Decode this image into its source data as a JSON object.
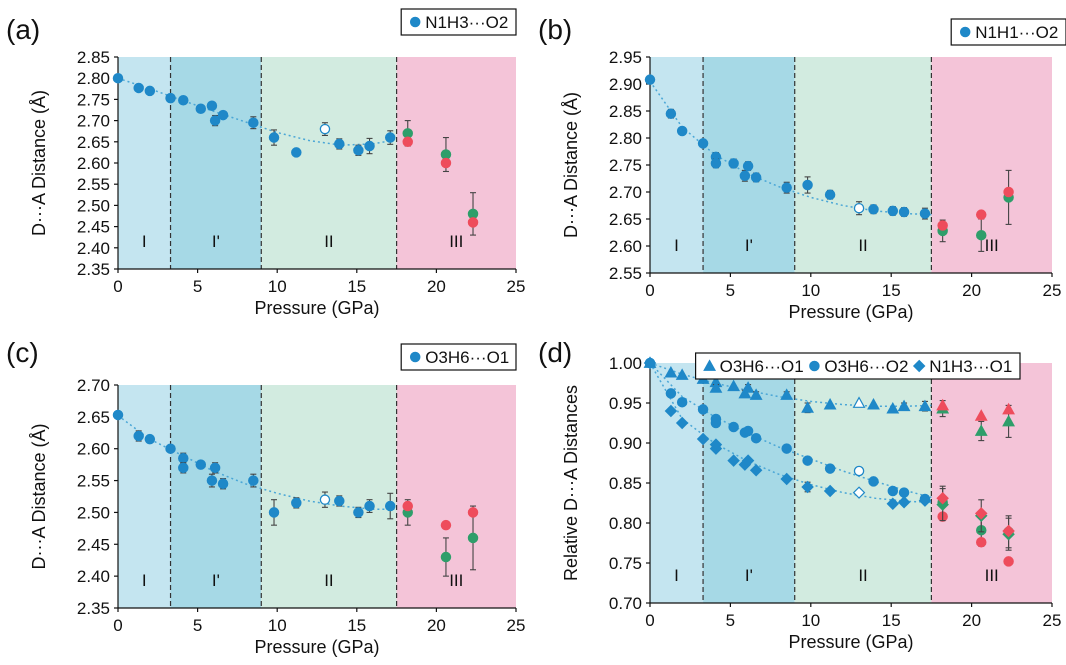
{
  "colors": {
    "region_I": "#c4e5f0",
    "region_I2": "#a6d9e6",
    "region_II": "#d2ebe0",
    "region_III": "#f4c4d8",
    "blue": "#1f88c8",
    "green": "#2e9e6a",
    "red": "#ee4c5c",
    "fit": "#4aa6d6"
  },
  "chart_data": [
    {
      "panel": "(a)",
      "type": "scatter",
      "xlabel": "Pressure (GPa)",
      "ylabel": "D···A Distance (Å)",
      "xlim": [
        0,
        25
      ],
      "ylim": [
        2.35,
        2.85
      ],
      "xticks": [
        "0",
        "5",
        "10",
        "15",
        "20",
        "25"
      ],
      "yticks": [
        "2.35",
        "2.40",
        "2.45",
        "2.50",
        "2.55",
        "2.60",
        "2.65",
        "2.70",
        "2.75",
        "2.80",
        "2.85"
      ],
      "region_bounds": [
        0,
        3.3,
        9.0,
        17.5,
        25
      ],
      "region_labels": [
        "I",
        "I'",
        "II",
        "III"
      ],
      "legend": [
        "N1H3···O2"
      ],
      "series": [
        {
          "name": "N1H3···O2",
          "marker": "circle",
          "color": "blue",
          "x": [
            0,
            1.3,
            2.0,
            3.3,
            4.1,
            5.2,
            5.9,
            6.1,
            6.6,
            8.5,
            9.8,
            11.2,
            13.9,
            15.1,
            15.8,
            17.1
          ],
          "y": [
            2.8,
            2.777,
            2.77,
            2.753,
            2.748,
            2.728,
            2.735,
            2.7,
            2.713,
            2.695,
            2.66,
            2.625,
            2.645,
            2.63,
            2.64,
            2.66
          ],
          "err": [
            0,
            0.008,
            0,
            0.005,
            0.005,
            0.008,
            0.008,
            0.012,
            0.008,
            0.014,
            0.018,
            0.008,
            0.012,
            0.012,
            0.018,
            0.016
          ]
        },
        {
          "name": "open",
          "marker": "open-circle",
          "color": "blue",
          "x": [
            13.0
          ],
          "y": [
            2.68
          ],
          "err": [
            0.015
          ]
        },
        {
          "name": "green",
          "marker": "circle",
          "color": "green",
          "x": [
            18.2,
            20.6,
            22.3
          ],
          "y": [
            2.67,
            2.62,
            2.48
          ],
          "err": [
            0.03,
            0.04,
            0.05
          ]
        },
        {
          "name": "red",
          "marker": "circle",
          "color": "red",
          "x": [
            18.2,
            20.6,
            22.3
          ],
          "y": [
            2.65,
            2.6,
            2.46
          ],
          "err": [
            0,
            0,
            0
          ]
        }
      ],
      "fit": {
        "x": [
          0,
          2,
          4,
          6,
          8,
          10,
          12,
          14,
          16,
          17.5
        ],
        "y": [
          2.8,
          2.775,
          2.748,
          2.722,
          2.697,
          2.672,
          2.653,
          2.642,
          2.645,
          2.655
        ]
      }
    },
    {
      "panel": "(b)",
      "type": "scatter",
      "xlabel": "Pressure (GPa)",
      "ylabel": "D···A Distance (Å)",
      "xlim": [
        0,
        25
      ],
      "ylim": [
        2.55,
        2.95
      ],
      "xticks": [
        "0",
        "5",
        "10",
        "15",
        "20",
        "25"
      ],
      "yticks": [
        "2.55",
        "2.60",
        "2.65",
        "2.70",
        "2.75",
        "2.80",
        "2.85",
        "2.90",
        "2.95"
      ],
      "region_bounds": [
        0,
        3.3,
        9.0,
        17.5,
        25
      ],
      "region_labels": [
        "I",
        "I'",
        "II",
        "III"
      ],
      "legend": [
        "N1H1···O2"
      ],
      "series": [
        {
          "name": "N1H1···O2",
          "marker": "circle",
          "color": "blue",
          "x": [
            0,
            1.3,
            2.0,
            3.3,
            4.1,
            4.1,
            5.2,
            5.9,
            6.1,
            6.6,
            8.5,
            9.8,
            11.2,
            13.9,
            15.1,
            15.8,
            17.1
          ],
          "y": [
            2.908,
            2.845,
            2.813,
            2.79,
            2.765,
            2.753,
            2.753,
            2.73,
            2.748,
            2.727,
            2.708,
            2.713,
            2.695,
            2.668,
            2.665,
            2.663,
            2.66
          ],
          "err": [
            0,
            0.008,
            0,
            0.005,
            0.008,
            0.008,
            0.008,
            0.01,
            0.008,
            0.008,
            0.01,
            0.015,
            0.008,
            0.008,
            0.008,
            0.008,
            0.01
          ]
        },
        {
          "name": "open",
          "marker": "open-circle",
          "color": "blue",
          "x": [
            13.0
          ],
          "y": [
            2.67
          ],
          "err": [
            0.012
          ]
        },
        {
          "name": "green",
          "marker": "circle",
          "color": "green",
          "x": [
            18.2,
            20.6,
            22.3
          ],
          "y": [
            2.628,
            2.62,
            2.69
          ],
          "err": [
            0.02,
            0.03,
            0.05
          ]
        },
        {
          "name": "red",
          "marker": "circle",
          "color": "red",
          "x": [
            18.2,
            20.6,
            22.3
          ],
          "y": [
            2.638,
            2.658,
            2.7
          ],
          "err": [
            0,
            0,
            0
          ]
        }
      ],
      "fit": {
        "x": [
          0,
          2,
          4,
          6,
          8,
          10,
          12,
          14,
          16,
          17.5
        ],
        "y": [
          2.905,
          2.82,
          2.77,
          2.735,
          2.71,
          2.69,
          2.675,
          2.665,
          2.66,
          2.658
        ]
      }
    },
    {
      "panel": "(c)",
      "type": "scatter",
      "xlabel": "Pressure (GPa)",
      "ylabel": "D···A Distance (Å)",
      "xlim": [
        0,
        25
      ],
      "ylim": [
        2.35,
        2.7
      ],
      "xticks": [
        "0",
        "5",
        "10",
        "15",
        "20",
        "25"
      ],
      "yticks": [
        "2.35",
        "2.40",
        "2.45",
        "2.50",
        "2.55",
        "2.60",
        "2.65",
        "2.70"
      ],
      "region_bounds": [
        0,
        3.3,
        9.0,
        17.5,
        25
      ],
      "region_labels": [
        "I",
        "I'",
        "II",
        "III"
      ],
      "legend": [
        "O3H6···O1"
      ],
      "series": [
        {
          "name": "O3H6···O1",
          "marker": "circle",
          "color": "blue",
          "x": [
            0,
            1.3,
            2.0,
            3.3,
            4.1,
            4.1,
            5.2,
            5.9,
            6.1,
            6.6,
            8.5,
            9.8,
            11.2,
            13.9,
            15.1,
            15.8,
            17.1
          ],
          "y": [
            2.653,
            2.62,
            2.615,
            2.6,
            2.585,
            2.57,
            2.575,
            2.55,
            2.57,
            2.545,
            2.55,
            2.5,
            2.515,
            2.518,
            2.5,
            2.51,
            2.51
          ],
          "err": [
            0,
            0.008,
            0,
            0.005,
            0.008,
            0.008,
            0.005,
            0.01,
            0.008,
            0.008,
            0.01,
            0.02,
            0.008,
            0.008,
            0.008,
            0.01,
            0.02
          ]
        },
        {
          "name": "open",
          "marker": "open-circle",
          "color": "blue",
          "x": [
            13.0
          ],
          "y": [
            2.52
          ],
          "err": [
            0.012
          ]
        },
        {
          "name": "green",
          "marker": "circle",
          "color": "green",
          "x": [
            18.2,
            20.6,
            22.3
          ],
          "y": [
            2.5,
            2.43,
            2.46
          ],
          "err": [
            0.02,
            0.03,
            0.05
          ]
        },
        {
          "name": "red",
          "marker": "circle",
          "color": "red",
          "x": [
            18.2,
            20.6,
            22.3
          ],
          "y": [
            2.51,
            2.48,
            2.5
          ],
          "err": [
            0,
            0,
            0
          ]
        }
      ],
      "fit": {
        "x": [
          0,
          2,
          4,
          6,
          8,
          10,
          12,
          14,
          16,
          17.5
        ],
        "y": [
          2.652,
          2.615,
          2.59,
          2.565,
          2.545,
          2.53,
          2.518,
          2.51,
          2.505,
          2.505
        ]
      }
    },
    {
      "panel": "(d)",
      "type": "scatter",
      "xlabel": "Pressure (GPa)",
      "ylabel": "Relative D···A Distances",
      "xlim": [
        0,
        25
      ],
      "ylim": [
        0.7,
        1.0
      ],
      "xticks": [
        "0",
        "5",
        "10",
        "15",
        "20",
        "25"
      ],
      "yticks": [
        "0.70",
        "0.75",
        "0.80",
        "0.85",
        "0.90",
        "0.95",
        "1.00"
      ],
      "region_bounds": [
        0,
        3.3,
        9.0,
        17.5,
        25
      ],
      "region_labels": [
        "I",
        "I'",
        "II",
        "III"
      ],
      "legend": [
        "O3H6···O1",
        "O3H6···O2",
        "N1H3···O1"
      ],
      "series": [
        {
          "name": "O3H6···O1",
          "marker": "triangle",
          "color": "blue",
          "x": [
            0,
            1.3,
            2.0,
            3.3,
            4.1,
            4.1,
            5.2,
            5.9,
            6.1,
            6.6,
            8.5,
            9.8,
            11.2,
            13.9,
            15.1,
            15.8,
            17.1
          ],
          "y": [
            1.0,
            0.988,
            0.985,
            0.98,
            0.976,
            0.969,
            0.971,
            0.962,
            0.969,
            0.96,
            0.96,
            0.944,
            0.948,
            0.948,
            0.943,
            0.946,
            0.946
          ],
          "err": [
            0,
            0,
            0,
            0,
            0.004,
            0.004,
            0,
            0.004,
            0.004,
            0.004,
            0.004,
            0.006,
            0,
            0,
            0,
            0.004,
            0.006
          ]
        },
        {
          "name": "O3H6···O2",
          "marker": "circle",
          "color": "blue",
          "x": [
            0,
            1.3,
            2.0,
            3.3,
            4.1,
            4.1,
            5.2,
            5.9,
            6.1,
            6.6,
            8.5,
            9.8,
            11.2,
            13.9,
            15.1,
            15.8,
            17.1
          ],
          "y": [
            1.0,
            0.962,
            0.951,
            0.942,
            0.93,
            0.925,
            0.92,
            0.913,
            0.915,
            0.906,
            0.893,
            0.878,
            0.868,
            0.852,
            0.84,
            0.838,
            0.83
          ],
          "err": [
            0,
            0,
            0,
            0,
            0,
            0,
            0,
            0,
            0,
            0,
            0,
            0,
            0,
            0,
            0,
            0,
            0
          ]
        },
        {
          "name": "N1H3···O1",
          "marker": "diamond",
          "color": "blue",
          "x": [
            0,
            1.3,
            2.0,
            3.3,
            4.1,
            4.1,
            5.2,
            5.9,
            6.1,
            6.6,
            8.5,
            9.8,
            11.2,
            15.1,
            15.8,
            17.1
          ],
          "y": [
            1.0,
            0.94,
            0.925,
            0.905,
            0.893,
            0.898,
            0.878,
            0.873,
            0.878,
            0.866,
            0.855,
            0.845,
            0.84,
            0.824,
            0.826,
            0.828
          ],
          "err": [
            0,
            0,
            0,
            0,
            0,
            0,
            0,
            0,
            0,
            0,
            0,
            0.006,
            0,
            0,
            0,
            0
          ]
        },
        {
          "name": "open-circle",
          "marker": "open-circle",
          "color": "blue",
          "x": [
            13.0
          ],
          "y": [
            0.865
          ],
          "err": [
            0
          ]
        },
        {
          "name": "open-triangle",
          "marker": "open-triangle",
          "color": "blue",
          "x": [
            13.0
          ],
          "y": [
            0.95
          ],
          "err": [
            0
          ]
        },
        {
          "name": "open-diamond",
          "marker": "open-diamond",
          "color": "blue",
          "x": [
            13.0
          ],
          "y": [
            0.838
          ],
          "err": [
            0
          ]
        },
        {
          "name": "green-tri",
          "marker": "triangle",
          "color": "green",
          "x": [
            18.2,
            20.6,
            22.3
          ],
          "y": [
            0.943,
            0.915,
            0.927
          ],
          "err": [
            0.01,
            0.012,
            0.02
          ]
        },
        {
          "name": "red-tri",
          "marker": "triangle",
          "color": "red",
          "x": [
            18.2,
            20.6,
            22.3
          ],
          "y": [
            0.947,
            0.934,
            0.942
          ],
          "err": [
            0,
            0,
            0
          ]
        },
        {
          "name": "green-circle",
          "marker": "circle",
          "color": "green",
          "x": [
            18.2,
            20.6,
            22.3
          ],
          "y": [
            0.826,
            0.791,
            0.789
          ],
          "err": [
            0.02,
            0.02,
            0.02
          ]
        },
        {
          "name": "red-circle",
          "marker": "circle",
          "color": "red",
          "x": [
            18.2,
            20.6,
            22.3
          ],
          "y": [
            0.808,
            0.776,
            0.752
          ],
          "err": [
            0,
            0,
            0
          ]
        },
        {
          "name": "green-diamond",
          "marker": "diamond",
          "color": "green",
          "x": [
            18.2,
            20.6,
            22.3
          ],
          "y": [
            0.823,
            0.809,
            0.786
          ],
          "err": [
            0.02,
            0.02,
            0.02
          ]
        },
        {
          "name": "red-diamond",
          "marker": "diamond",
          "color": "red",
          "x": [
            18.2,
            20.6,
            22.3
          ],
          "y": [
            0.831,
            0.812,
            0.79
          ],
          "err": [
            0,
            0,
            0
          ]
        }
      ],
      "fits": [
        {
          "x": [
            0,
            2,
            4,
            6,
            8,
            10,
            12,
            14,
            16,
            17.5
          ],
          "y": [
            1.0,
            0.986,
            0.975,
            0.966,
            0.958,
            0.952,
            0.948,
            0.946,
            0.946,
            0.947
          ]
        },
        {
          "x": [
            0,
            2,
            4,
            6,
            8,
            10,
            12,
            14,
            16,
            17.5
          ],
          "y": [
            1.0,
            0.958,
            0.933,
            0.913,
            0.895,
            0.88,
            0.865,
            0.852,
            0.84,
            0.832
          ]
        },
        {
          "x": [
            0,
            2,
            4,
            6,
            8,
            10,
            12,
            14,
            16,
            17.5
          ],
          "y": [
            1.0,
            0.93,
            0.9,
            0.878,
            0.861,
            0.848,
            0.838,
            0.831,
            0.827,
            0.826
          ]
        }
      ]
    }
  ]
}
